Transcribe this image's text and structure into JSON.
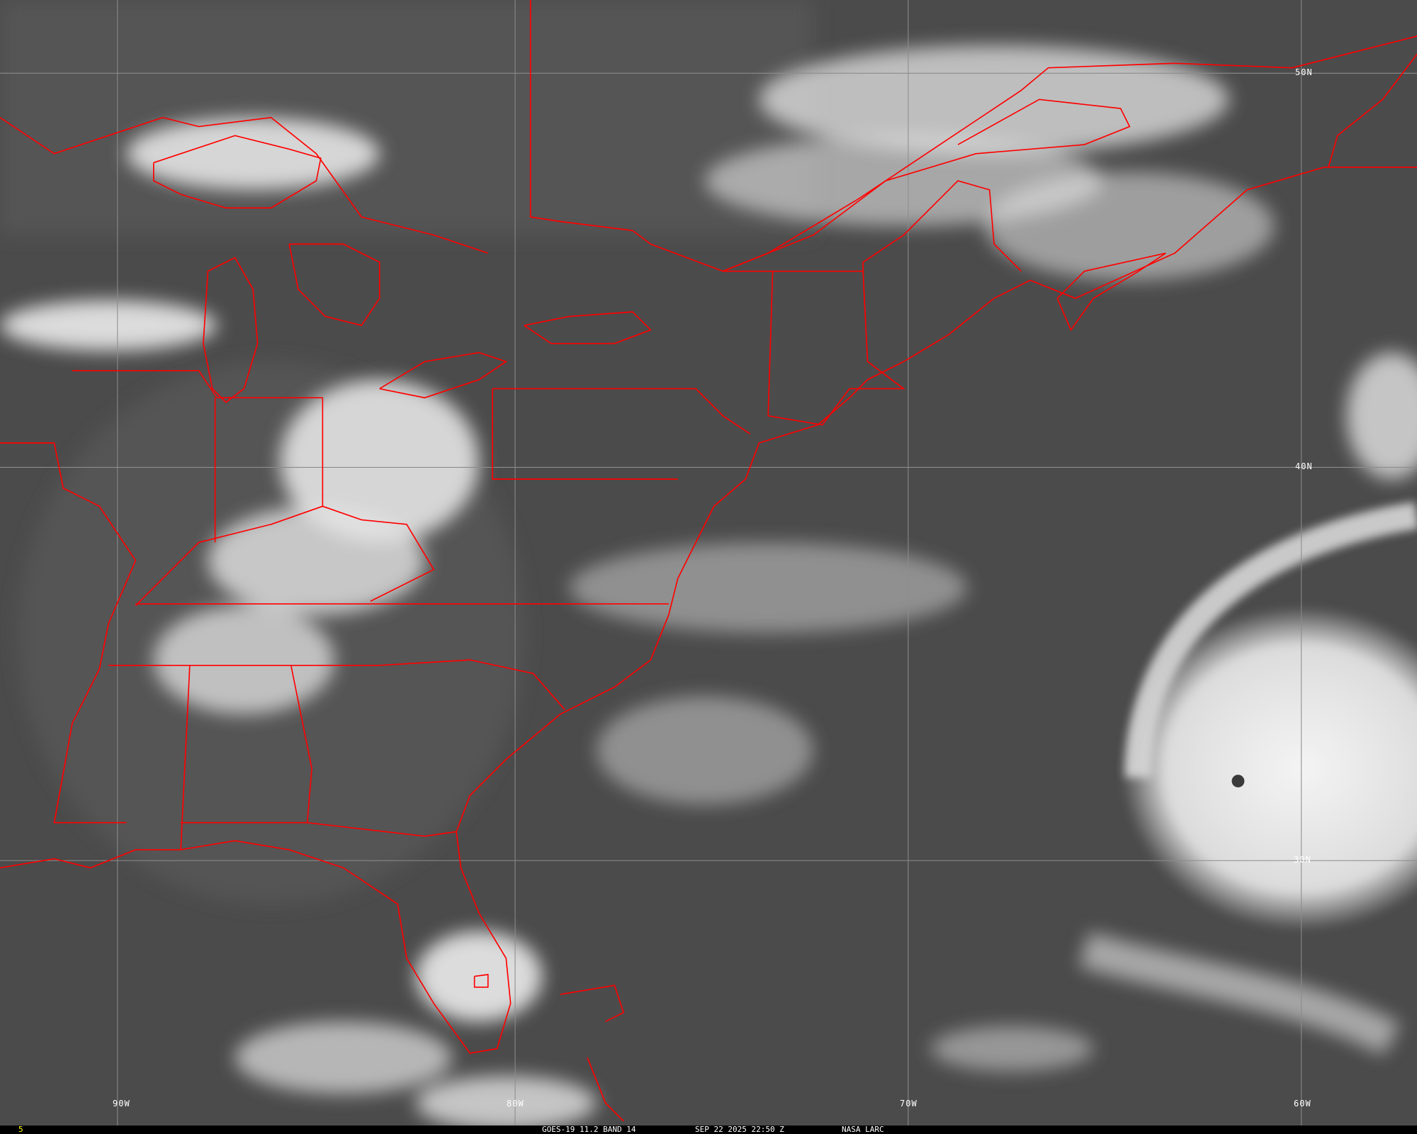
{
  "image": {
    "satellite": "GOES-19",
    "product": "GOES-19 11.2 BAND 14",
    "datetime": "SEP 22 2025 22:50 Z",
    "credit": "NASA LARC",
    "frame_number": "5"
  },
  "grid": {
    "longitude_labels": [
      "90W",
      "80W",
      "70W",
      "60W"
    ],
    "latitude_labels": [
      "50N",
      "40N",
      "30N"
    ]
  },
  "colors": {
    "background": "#4a4a4a",
    "clouds": "#f0f0f0",
    "boundaries": "#ff0000",
    "grid": "#8c8c8c",
    "frame_number": "#ffff00",
    "status_text": "#ffffff"
  },
  "features": {
    "hurricane_eye": "present",
    "boundary_icon": "political-boundary-lines"
  }
}
